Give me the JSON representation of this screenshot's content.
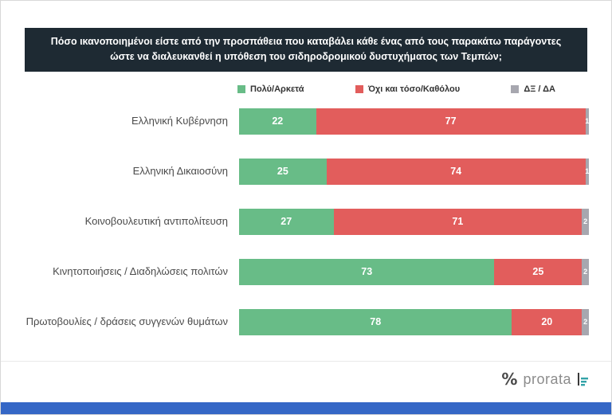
{
  "page": {
    "header_title": "Πόσο ικανοποιημένοι είστε από την προσπάθεια που καταβάλει κάθε ένας από τους παρακάτω παράγοντες ώστε να διαλευκανθεί η υπόθεση του σιδηροδρομικού δυστυχήματος των Τεμπών;",
    "footer": {
      "percent_mark": "%",
      "brand": "prorata"
    }
  },
  "colors": {
    "header_bg": "#1e2a33",
    "green": "#68bc87",
    "red": "#e25d5c",
    "gray": "#a7a7af",
    "footer_strip": "#3567c6",
    "brand_icon_teal": "#33a3a8"
  },
  "chart_data": {
    "type": "bar",
    "orientation": "horizontal",
    "stacked": true,
    "title": "Πόσο ικανοποιημένοι είστε από την προσπάθεια που καταβάλει κάθε ένας από τους παρακάτω παράγοντες ώστε να διαλευκανθεί η υπόθεση του σιδηροδρομικού δυστυχήματος των Τεμπών;",
    "xlabel": "",
    "ylabel": "",
    "xlim": [
      0,
      100
    ],
    "grid": false,
    "legend_position": "top",
    "categories": [
      "Ελληνική Κυβέρνηση",
      "Ελληνική Δικαιοσύνη",
      "Κοινοβουλευτική αντιπολίτευση",
      "Κινητοποιήσεις / Διαδηλώσεις πολιτών",
      "Πρωτοβουλίες / δράσεις συγγενών θυμάτων"
    ],
    "series": [
      {
        "name": "Πολύ/Αρκετά",
        "color": "#68bc87",
        "values": [
          22,
          25,
          27,
          73,
          78
        ]
      },
      {
        "name": "Όχι και τόσο/Καθόλου",
        "color": "#e25d5c",
        "values": [
          77,
          74,
          71,
          25,
          20
        ]
      },
      {
        "name": "ΔΞ / ΔΑ",
        "color": "#a7a7af",
        "values": [
          1,
          1,
          2,
          2,
          2
        ]
      }
    ]
  }
}
